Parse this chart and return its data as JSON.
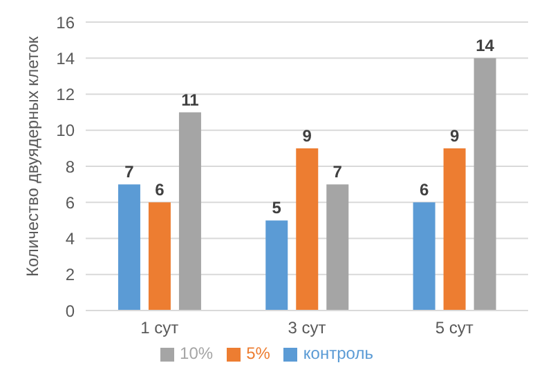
{
  "chart_data": {
    "type": "bar",
    "ylabel": "Количество двуядерных клеток",
    "categories": [
      "1 сут",
      "3 сут",
      "5 сут"
    ],
    "series": [
      {
        "name": "контроль",
        "color": "#5b9bd5",
        "values": [
          7,
          5,
          6
        ]
      },
      {
        "name": "5%",
        "color": "#ed7d31",
        "values": [
          6,
          9,
          9
        ]
      },
      {
        "name": "10%",
        "color": "#a5a5a5",
        "values": [
          11,
          7,
          14
        ]
      }
    ],
    "ylim": [
      0,
      16
    ],
    "yticks": [
      0,
      2,
      4,
      6,
      8,
      10,
      12,
      14,
      16
    ],
    "grid": "y",
    "legend": "bottom",
    "data_labels": true
  }
}
